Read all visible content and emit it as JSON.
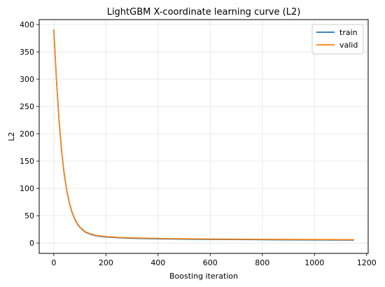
{
  "chart_data": {
    "type": "line",
    "title": "LightGBM X-coordinate learning curve (L2)",
    "xlabel": "Boosting iteration",
    "ylabel": "L2",
    "xlim": [
      -56,
      1206
    ],
    "ylim": [
      -19,
      409
    ],
    "x_ticks": [
      0,
      200,
      400,
      600,
      800,
      1000,
      1200
    ],
    "y_ticks": [
      0,
      50,
      100,
      150,
      200,
      250,
      300,
      350,
      400
    ],
    "grid": true,
    "legend_position": "top-right",
    "series": [
      {
        "name": "train",
        "color": "#1f77b4",
        "x": [
          0,
          10,
          20,
          30,
          40,
          50,
          60,
          70,
          80,
          90,
          100,
          120,
          140,
          160,
          180,
          200,
          250,
          300,
          400,
          500,
          600,
          700,
          800,
          900,
          1000,
          1100,
          1150
        ],
        "y": [
          390,
          300,
          225,
          168,
          126,
          95,
          72,
          56,
          44,
          35,
          28.5,
          20,
          16,
          13.5,
          12,
          11,
          9.5,
          8.6,
          7.6,
          7.0,
          6.6,
          6.3,
          6.0,
          5.8,
          5.6,
          5.4,
          5.3
        ]
      },
      {
        "name": "valid",
        "color": "#ff7f0e",
        "x": [
          0,
          10,
          20,
          30,
          40,
          50,
          60,
          70,
          80,
          90,
          100,
          120,
          140,
          160,
          180,
          200,
          250,
          300,
          400,
          500,
          600,
          700,
          800,
          900,
          1000,
          1100,
          1150
        ],
        "y": [
          390,
          301,
          226,
          169,
          127,
          96,
          73,
          57,
          45,
          36,
          29.2,
          20.8,
          16.8,
          14.3,
          12.8,
          11.8,
          10.3,
          9.4,
          8.4,
          7.8,
          7.4,
          7.0,
          6.8,
          6.6,
          6.4,
          6.2,
          6.1
        ]
      }
    ]
  }
}
